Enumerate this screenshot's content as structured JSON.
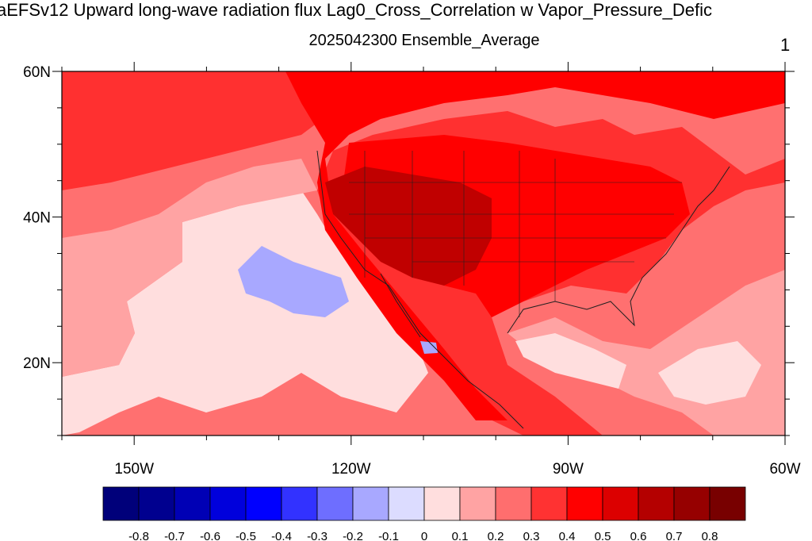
{
  "title": "aEFSv12 Upward long-wave radiation flux Lag0_Cross_Correlation w Vapor_Pressure_Defic",
  "subtitle": "2025042300 Ensemble_Average",
  "panel_number": "1",
  "map": {
    "lon_range": [
      -160,
      -60
    ],
    "lat_range": [
      10,
      60
    ],
    "lat_ticks": [
      {
        "value": 60,
        "label": "60N"
      },
      {
        "value": 40,
        "label": "40N"
      },
      {
        "value": 20,
        "label": "20N"
      }
    ],
    "lon_ticks": [
      {
        "value": -150,
        "label": "150W"
      },
      {
        "value": -120,
        "label": "120W"
      },
      {
        "value": -90,
        "label": "90W"
      },
      {
        "value": -60,
        "label": "60W"
      }
    ],
    "field_colors": {
      "background": "#ff7070",
      "low_correlation": "#ffdede",
      "moderate": "#ffa3a3",
      "strong": "#ff3030",
      "very_strong": "#ff0000",
      "highest": "#c00000",
      "negative": "#a8a8ff"
    }
  },
  "colorbar": {
    "labels": [
      "-0.8",
      "-0.7",
      "-0.6",
      "-0.5",
      "-0.4",
      "-0.3",
      "-0.2",
      "-0.1",
      "0",
      "0.1",
      "0.2",
      "0.3",
      "0.4",
      "0.5",
      "0.6",
      "0.7",
      "0.8"
    ],
    "colors": [
      "#00007a",
      "#00008f",
      "#0000b5",
      "#0000dc",
      "#0000ff",
      "#3232ff",
      "#6e6eff",
      "#a8a8ff",
      "#dcdcff",
      "#ffdede",
      "#ffa3a3",
      "#ff6e6e",
      "#ff3232",
      "#ff0000",
      "#dc0000",
      "#b40000",
      "#960000",
      "#780000"
    ]
  }
}
